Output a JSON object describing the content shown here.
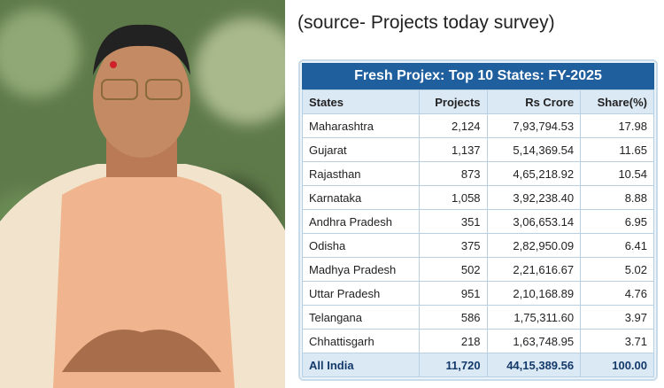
{
  "source": "(source- Projects today survey)",
  "table": {
    "title": "Fresh Projex: Top 10 States: FY-2025",
    "headers": [
      "States",
      "Projects",
      "Rs Crore",
      "Share(%)"
    ],
    "rows": [
      [
        "Maharashtra",
        "2,124",
        "7,93,794.53",
        "17.98"
      ],
      [
        "Gujarat",
        "1,137",
        "5,14,369.54",
        "11.65"
      ],
      [
        "Rajasthan",
        "873",
        "4,65,218.92",
        "10.54"
      ],
      [
        "Karnataka",
        "1,058",
        "3,92,238.40",
        "8.88"
      ],
      [
        "Andhra Pradesh",
        "351",
        "3,06,653.14",
        "6.95"
      ],
      [
        "Odisha",
        "375",
        "2,82,950.09",
        "6.41"
      ],
      [
        "Madhya Pradesh",
        "502",
        "2,21,616.67",
        "5.02"
      ],
      [
        "Uttar Pradesh",
        "951",
        "2,10,168.89",
        "4.76"
      ],
      [
        "Telangana",
        "586",
        "1,75,311.60",
        "3.97"
      ],
      [
        "Chhattisgarh",
        "218",
        "1,63,748.95",
        "3.71"
      ]
    ],
    "total": [
      "All India",
      "11,720",
      "44,15,389.56",
      "100.00"
    ]
  }
}
